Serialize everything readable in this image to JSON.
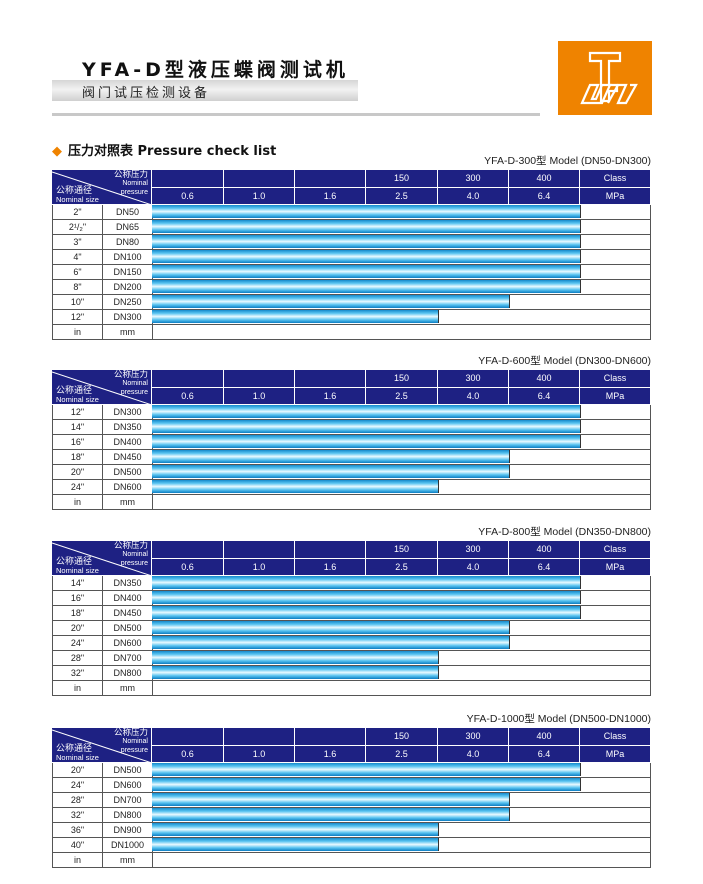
{
  "header": {
    "title": "YFA-D型液压蝶阀测试机",
    "subtitle": "阀门试压检测设备",
    "logo": "orange-square-TW-logo"
  },
  "section_title": "压力对照表 Pressure check list",
  "colors": {
    "header_bg": "#1e2183",
    "accent": "#ef8300",
    "bar": "#58c3f0"
  },
  "header_labels": {
    "pressure_cn": "公称压力",
    "pressure_en1": "Nominal",
    "pressure_en2": "pressure",
    "size_cn": "公称通径",
    "size_en": "Nominal size"
  },
  "class_row": [
    "",
    "",
    "",
    "150",
    "300",
    "400",
    "Class"
  ],
  "mpa_row": [
    "0.6",
    "1.0",
    "1.6",
    "2.5",
    "4.0",
    "6.4",
    "MPa"
  ],
  "units": {
    "in": "in",
    "mm": "mm"
  },
  "tables": [
    {
      "model": "YFA-D-300型   Model (DN50-DN300)",
      "rows": [
        [
          "2\"",
          "DN50",
          "6.4"
        ],
        [
          "2¹/₂\"",
          "DN65",
          "6.4"
        ],
        [
          "3\"",
          "DN80",
          "6.4"
        ],
        [
          "4\"",
          "DN100",
          "6.4"
        ],
        [
          "6\"",
          "DN150",
          "6.4"
        ],
        [
          "8\"",
          "DN200",
          "6.4"
        ],
        [
          "10\"",
          "DN250",
          "4.0"
        ],
        [
          "12\"",
          "DN300",
          "2.5"
        ]
      ]
    },
    {
      "model": "YFA-D-600型   Model (DN300-DN600)",
      "rows": [
        [
          "12\"",
          "DN300",
          "6.4"
        ],
        [
          "14\"",
          "DN350",
          "6.4"
        ],
        [
          "16\"",
          "DN400",
          "6.4"
        ],
        [
          "18\"",
          "DN450",
          "4.0"
        ],
        [
          "20\"",
          "DN500",
          "4.0"
        ],
        [
          "24\"",
          "DN600",
          "2.5"
        ]
      ]
    },
    {
      "model": "YFA-D-800型   Model (DN350-DN800)",
      "rows": [
        [
          "14\"",
          "DN350",
          "6.4"
        ],
        [
          "16\"",
          "DN400",
          "6.4"
        ],
        [
          "18\"",
          "DN450",
          "6.4"
        ],
        [
          "20\"",
          "DN500",
          "4.0"
        ],
        [
          "24\"",
          "DN600",
          "4.0"
        ],
        [
          "28\"",
          "DN700",
          "2.5"
        ],
        [
          "32\"",
          "DN800",
          "2.5"
        ]
      ]
    },
    {
      "model": "YFA-D-1000型   Model (DN500-DN1000)",
      "rows": [
        [
          "20\"",
          "DN500",
          "6.4"
        ],
        [
          "24\"",
          "DN600",
          "6.4"
        ],
        [
          "28\"",
          "DN700",
          "4.0"
        ],
        [
          "32\"",
          "DN800",
          "4.0"
        ],
        [
          "36\"",
          "DN900",
          "2.5"
        ],
        [
          "40\"",
          "DN1000",
          "2.5"
        ]
      ]
    }
  ]
}
